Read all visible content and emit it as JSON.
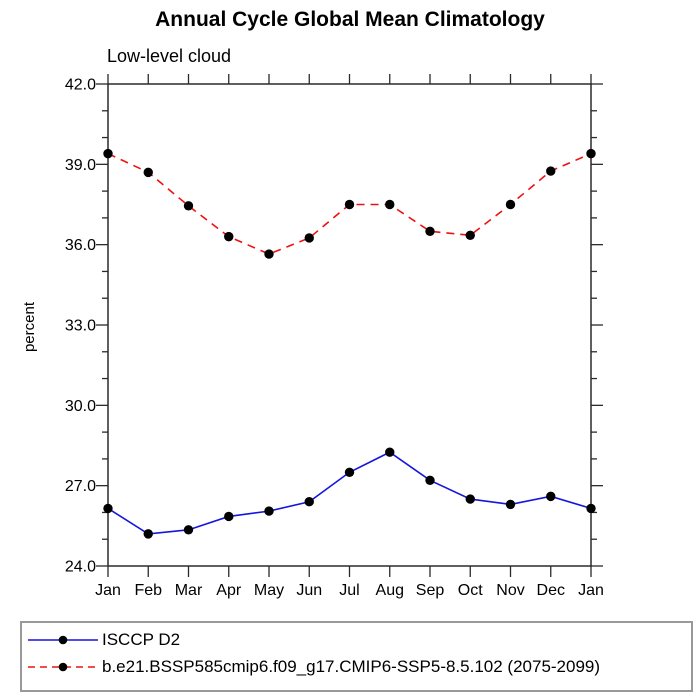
{
  "header": {
    "title": "Annual Cycle Global Mean Climatology",
    "subtitle": "Low-level cloud"
  },
  "chart_data": {
    "type": "line",
    "title": "Annual Cycle Global Mean Climatology",
    "subtitle": "Low-level cloud",
    "ylabel": "percent",
    "x_categories": [
      "Jan",
      "Feb",
      "Mar",
      "Apr",
      "May",
      "Jun",
      "Jul",
      "Aug",
      "Sep",
      "Oct",
      "Nov",
      "Dec",
      "Jan"
    ],
    "ylim": [
      24.0,
      42.0
    ],
    "ytick_major_interval": 3.0,
    "ytick_minor_interval": 1.0,
    "ytick_labels": [
      "24.0",
      "27.0",
      "30.0",
      "33.0",
      "36.0",
      "39.0",
      "42.0"
    ],
    "grid": false,
    "legend_position": "bottom",
    "series": [
      {
        "name": "ISCCP D2",
        "color": "#1515DD",
        "line_style": "solid",
        "dash": "none",
        "marker": "circle",
        "marker_color": "#000000",
        "values": [
          26.15,
          25.2,
          25.35,
          25.85,
          26.05,
          26.4,
          27.5,
          28.25,
          27.2,
          26.5,
          26.3,
          26.6,
          26.15
        ]
      },
      {
        "name": "b.e21.BSSP585cmip6.f09_g17.CMIP6-SSP5-8.5.102 (2075-2099)",
        "color": "#EE1111",
        "line_style": "dashed",
        "dash": "8 6",
        "marker": "circle",
        "marker_color": "#000000",
        "values": [
          39.4,
          38.7,
          37.45,
          36.3,
          35.65,
          36.25,
          37.5,
          37.5,
          36.5,
          36.35,
          37.5,
          38.75,
          39.4
        ]
      }
    ]
  }
}
